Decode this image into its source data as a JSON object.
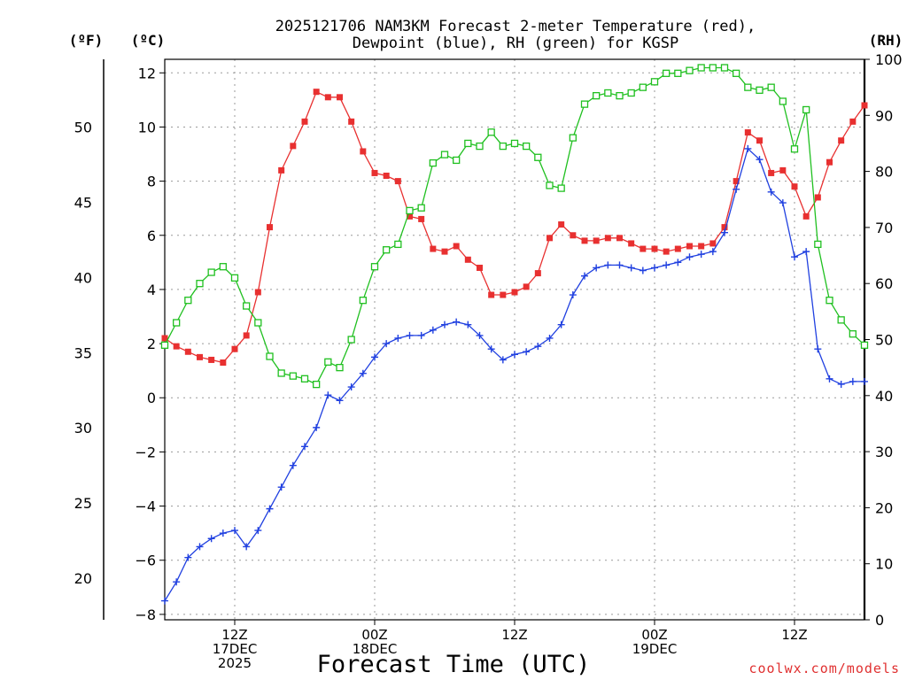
{
  "chart_data": {
    "type": "line",
    "title_line1": "2025121706 NAM3KM Forecast 2-meter Temperature (red),",
    "title_line2": "Dewpoint (blue), RH (green) for KGSP",
    "xlabel": "Forecast Time (UTC)",
    "credit": "coolwx.com/models",
    "x_unit": "forecast hour from 2025121706",
    "xlim": [
      0,
      60
    ],
    "y_left_f_label": "(ºF)",
    "y_left_c_label": "(ºC)",
    "y_right_label": "(RH)",
    "ylim_c": [
      -8.2,
      12.5
    ],
    "ylim_rh": [
      0,
      100
    ],
    "y_c_ticks": [
      "12",
      "10",
      "8",
      "6",
      "4",
      "2",
      "0",
      "−2",
      "−4",
      "−6",
      "−8"
    ],
    "y_f_ticks": [
      "50",
      "45",
      "40",
      "35",
      "30",
      "25",
      "20"
    ],
    "y_rh_ticks": [
      "100",
      "90",
      "80",
      "70",
      "60",
      "50",
      "40",
      "30",
      "20",
      "10",
      "0"
    ],
    "x_ticks": [
      {
        "hour": 6,
        "lines": [
          "12Z",
          "17DEC",
          "2025"
        ]
      },
      {
        "hour": 18,
        "lines": [
          "00Z",
          "18DEC"
        ]
      },
      {
        "hour": 30,
        "lines": [
          "12Z"
        ]
      },
      {
        "hour": 42,
        "lines": [
          "00Z",
          "19DEC"
        ]
      },
      {
        "hour": 54,
        "lines": [
          "12Z"
        ]
      }
    ],
    "grid": true,
    "series": [
      {
        "name": "Temperature",
        "axis": "c",
        "color": "#e83030",
        "marker": "filled-square",
        "x": [
          0,
          1,
          2,
          3,
          4,
          5,
          6,
          7,
          8,
          9,
          10,
          11,
          12,
          13,
          14,
          15,
          16,
          17,
          18,
          19,
          20,
          21,
          22,
          23,
          24,
          25,
          26,
          27,
          28,
          29,
          30,
          31,
          32,
          33,
          34,
          35,
          36,
          37,
          38,
          39,
          40,
          41,
          42,
          43,
          44,
          45,
          46,
          47,
          48,
          49,
          50,
          51,
          52,
          53,
          54,
          55,
          56,
          57,
          58,
          59,
          60
        ],
        "y": [
          2.2,
          1.9,
          1.7,
          1.5,
          1.4,
          1.3,
          1.8,
          2.3,
          3.9,
          6.3,
          8.4,
          9.3,
          10.2,
          11.3,
          11.1,
          11.1,
          10.2,
          9.1,
          8.3,
          8.2,
          8.0,
          6.7,
          6.6,
          5.5,
          5.4,
          5.6,
          5.1,
          4.8,
          3.8,
          3.8,
          3.9,
          4.1,
          4.6,
          5.9,
          6.4,
          6.0,
          5.8,
          5.8,
          5.9,
          5.9,
          5.7,
          5.5,
          5.5,
          5.4,
          5.5,
          5.6,
          5.6,
          5.7,
          6.3,
          8.0,
          9.8,
          9.5,
          8.3,
          8.4,
          7.8,
          6.7,
          7.4,
          8.7,
          9.5,
          10.2,
          10.8
        ]
      },
      {
        "name": "Dewpoint",
        "axis": "c",
        "color": "#2040e0",
        "marker": "plus",
        "x": [
          0,
          1,
          2,
          3,
          4,
          5,
          6,
          7,
          8,
          9,
          10,
          11,
          12,
          13,
          14,
          15,
          16,
          17,
          18,
          19,
          20,
          21,
          22,
          23,
          24,
          25,
          26,
          27,
          28,
          29,
          30,
          31,
          32,
          33,
          34,
          35,
          36,
          37,
          38,
          39,
          40,
          41,
          42,
          43,
          44,
          45,
          46,
          47,
          48,
          49,
          50,
          51,
          52,
          53,
          54,
          55,
          56,
          57,
          58,
          59,
          60
        ],
        "y": [
          -7.5,
          -6.8,
          -5.9,
          -5.5,
          -5.2,
          -5.0,
          -4.9,
          -5.5,
          -4.9,
          -4.1,
          -3.3,
          -2.5,
          -1.8,
          -1.1,
          0.1,
          -0.1,
          0.4,
          0.9,
          1.5,
          2.0,
          2.2,
          2.3,
          2.3,
          2.5,
          2.7,
          2.8,
          2.7,
          2.3,
          1.8,
          1.4,
          1.6,
          1.7,
          1.9,
          2.2,
          2.7,
          3.8,
          4.5,
          4.8,
          4.9,
          4.9,
          4.8,
          4.7,
          4.8,
          4.9,
          5.0,
          5.2,
          5.3,
          5.4,
          6.1,
          7.7,
          9.2,
          8.8,
          7.6,
          7.2,
          5.2,
          5.4,
          1.8,
          0.7,
          0.5,
          0.6,
          0.6
        ]
      },
      {
        "name": "RH",
        "axis": "rh",
        "color": "#20c020",
        "marker": "open-square",
        "x": [
          0,
          1,
          2,
          3,
          4,
          5,
          6,
          7,
          8,
          9,
          10,
          11,
          12,
          13,
          14,
          15,
          16,
          17,
          18,
          19,
          20,
          21,
          22,
          23,
          24,
          25,
          26,
          27,
          28,
          29,
          30,
          31,
          32,
          33,
          34,
          35,
          36,
          37,
          38,
          39,
          40,
          41,
          42,
          43,
          44,
          45,
          46,
          47,
          48,
          49,
          50,
          51,
          52,
          53,
          54,
          55,
          56,
          57,
          58,
          59,
          60
        ],
        "y": [
          49,
          53,
          57,
          60,
          62,
          63,
          61,
          56,
          53,
          47,
          44,
          43.5,
          43,
          42,
          46,
          45,
          50,
          57,
          63,
          66,
          67,
          73,
          73.5,
          81.5,
          83,
          82,
          85,
          84.5,
          87,
          84.5,
          85,
          84.5,
          82.5,
          77.5,
          77,
          86,
          92,
          93.5,
          94,
          93.5,
          94,
          95,
          96,
          97.5,
          97.5,
          98,
          98.5,
          98.5,
          98.5,
          97.5,
          95,
          94.5,
          95,
          92.5,
          84,
          91,
          67,
          57,
          53.5,
          51,
          49
        ]
      }
    ]
  }
}
